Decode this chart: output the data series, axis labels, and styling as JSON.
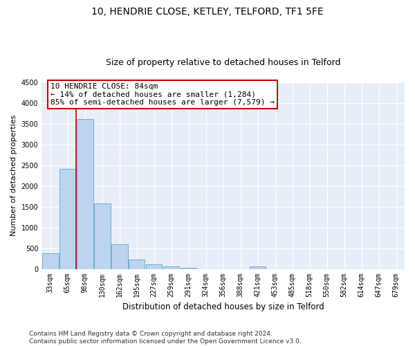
{
  "title1": "10, HENDRIE CLOSE, KETLEY, TELFORD, TF1 5FE",
  "title2": "Size of property relative to detached houses in Telford",
  "xlabel": "Distribution of detached houses by size in Telford",
  "ylabel": "Number of detached properties",
  "categories": [
    "33sqm",
    "65sqm",
    "98sqm",
    "130sqm",
    "162sqm",
    "195sqm",
    "227sqm",
    "259sqm",
    "291sqm",
    "324sqm",
    "356sqm",
    "388sqm",
    "421sqm",
    "453sqm",
    "485sqm",
    "518sqm",
    "550sqm",
    "582sqm",
    "614sqm",
    "647sqm",
    "679sqm"
  ],
  "values": [
    370,
    2420,
    3620,
    1580,
    590,
    230,
    105,
    60,
    30,
    0,
    0,
    0,
    55,
    0,
    0,
    0,
    0,
    0,
    0,
    0,
    0
  ],
  "bar_color": "#bdd4ee",
  "bar_edge_color": "#6baed6",
  "vline_color": "#cc0000",
  "annotation_line1": "10 HENDRIE CLOSE: 84sqm",
  "annotation_line2": "← 14% of detached houses are smaller (1,284)",
  "annotation_line3": "85% of semi-detached houses are larger (7,579) →",
  "annotation_box_color": "#ffffff",
  "annotation_box_edge": "#cc0000",
  "ylim": [
    0,
    4500
  ],
  "yticks": [
    0,
    500,
    1000,
    1500,
    2000,
    2500,
    3000,
    3500,
    4000,
    4500
  ],
  "bg_color": "#dde8f5",
  "plot_bg_color": "#e8eef8",
  "footer_line1": "Contains HM Land Registry data © Crown copyright and database right 2024.",
  "footer_line2": "Contains public sector information licensed under the Open Government Licence v3.0.",
  "title1_fontsize": 10,
  "title2_fontsize": 9,
  "xlabel_fontsize": 8.5,
  "ylabel_fontsize": 8,
  "tick_fontsize": 7,
  "annotation_fontsize": 8,
  "footer_fontsize": 6.5
}
